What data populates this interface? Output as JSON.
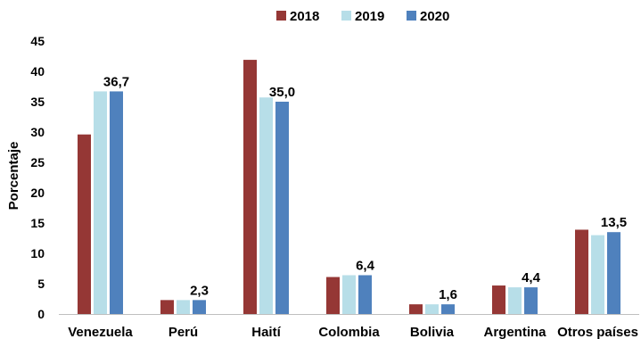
{
  "chart_data": {
    "type": "bar",
    "title": "",
    "xlabel": "",
    "ylabel": "Porcentaje",
    "ylim": [
      0,
      45
    ],
    "yticks": [
      0,
      5,
      10,
      15,
      20,
      25,
      30,
      35,
      40,
      45
    ],
    "grid": false,
    "legend_position": "top-center",
    "categories": [
      "Venezuela",
      "Perú",
      "Haití",
      "Colombia",
      "Bolivia",
      "Argentina",
      "Otros países"
    ],
    "series": [
      {
        "name": "2018",
        "color": "#953735",
        "values": [
          29.6,
          2.3,
          41.9,
          6.1,
          1.6,
          4.7,
          13.9
        ]
      },
      {
        "name": "2019",
        "color": "#B7DEE8",
        "values": [
          36.7,
          2.3,
          35.7,
          6.4,
          1.6,
          4.4,
          13.0
        ]
      },
      {
        "name": "2020",
        "color": "#4F81BD",
        "values": [
          36.7,
          2.3,
          35.0,
          6.4,
          1.6,
          4.4,
          13.5
        ]
      }
    ],
    "data_labels": {
      "series": "2020",
      "texts": [
        "36,7",
        "2,3",
        "35,0",
        "6,4",
        "1,6",
        "4,4",
        "13,5"
      ]
    }
  }
}
